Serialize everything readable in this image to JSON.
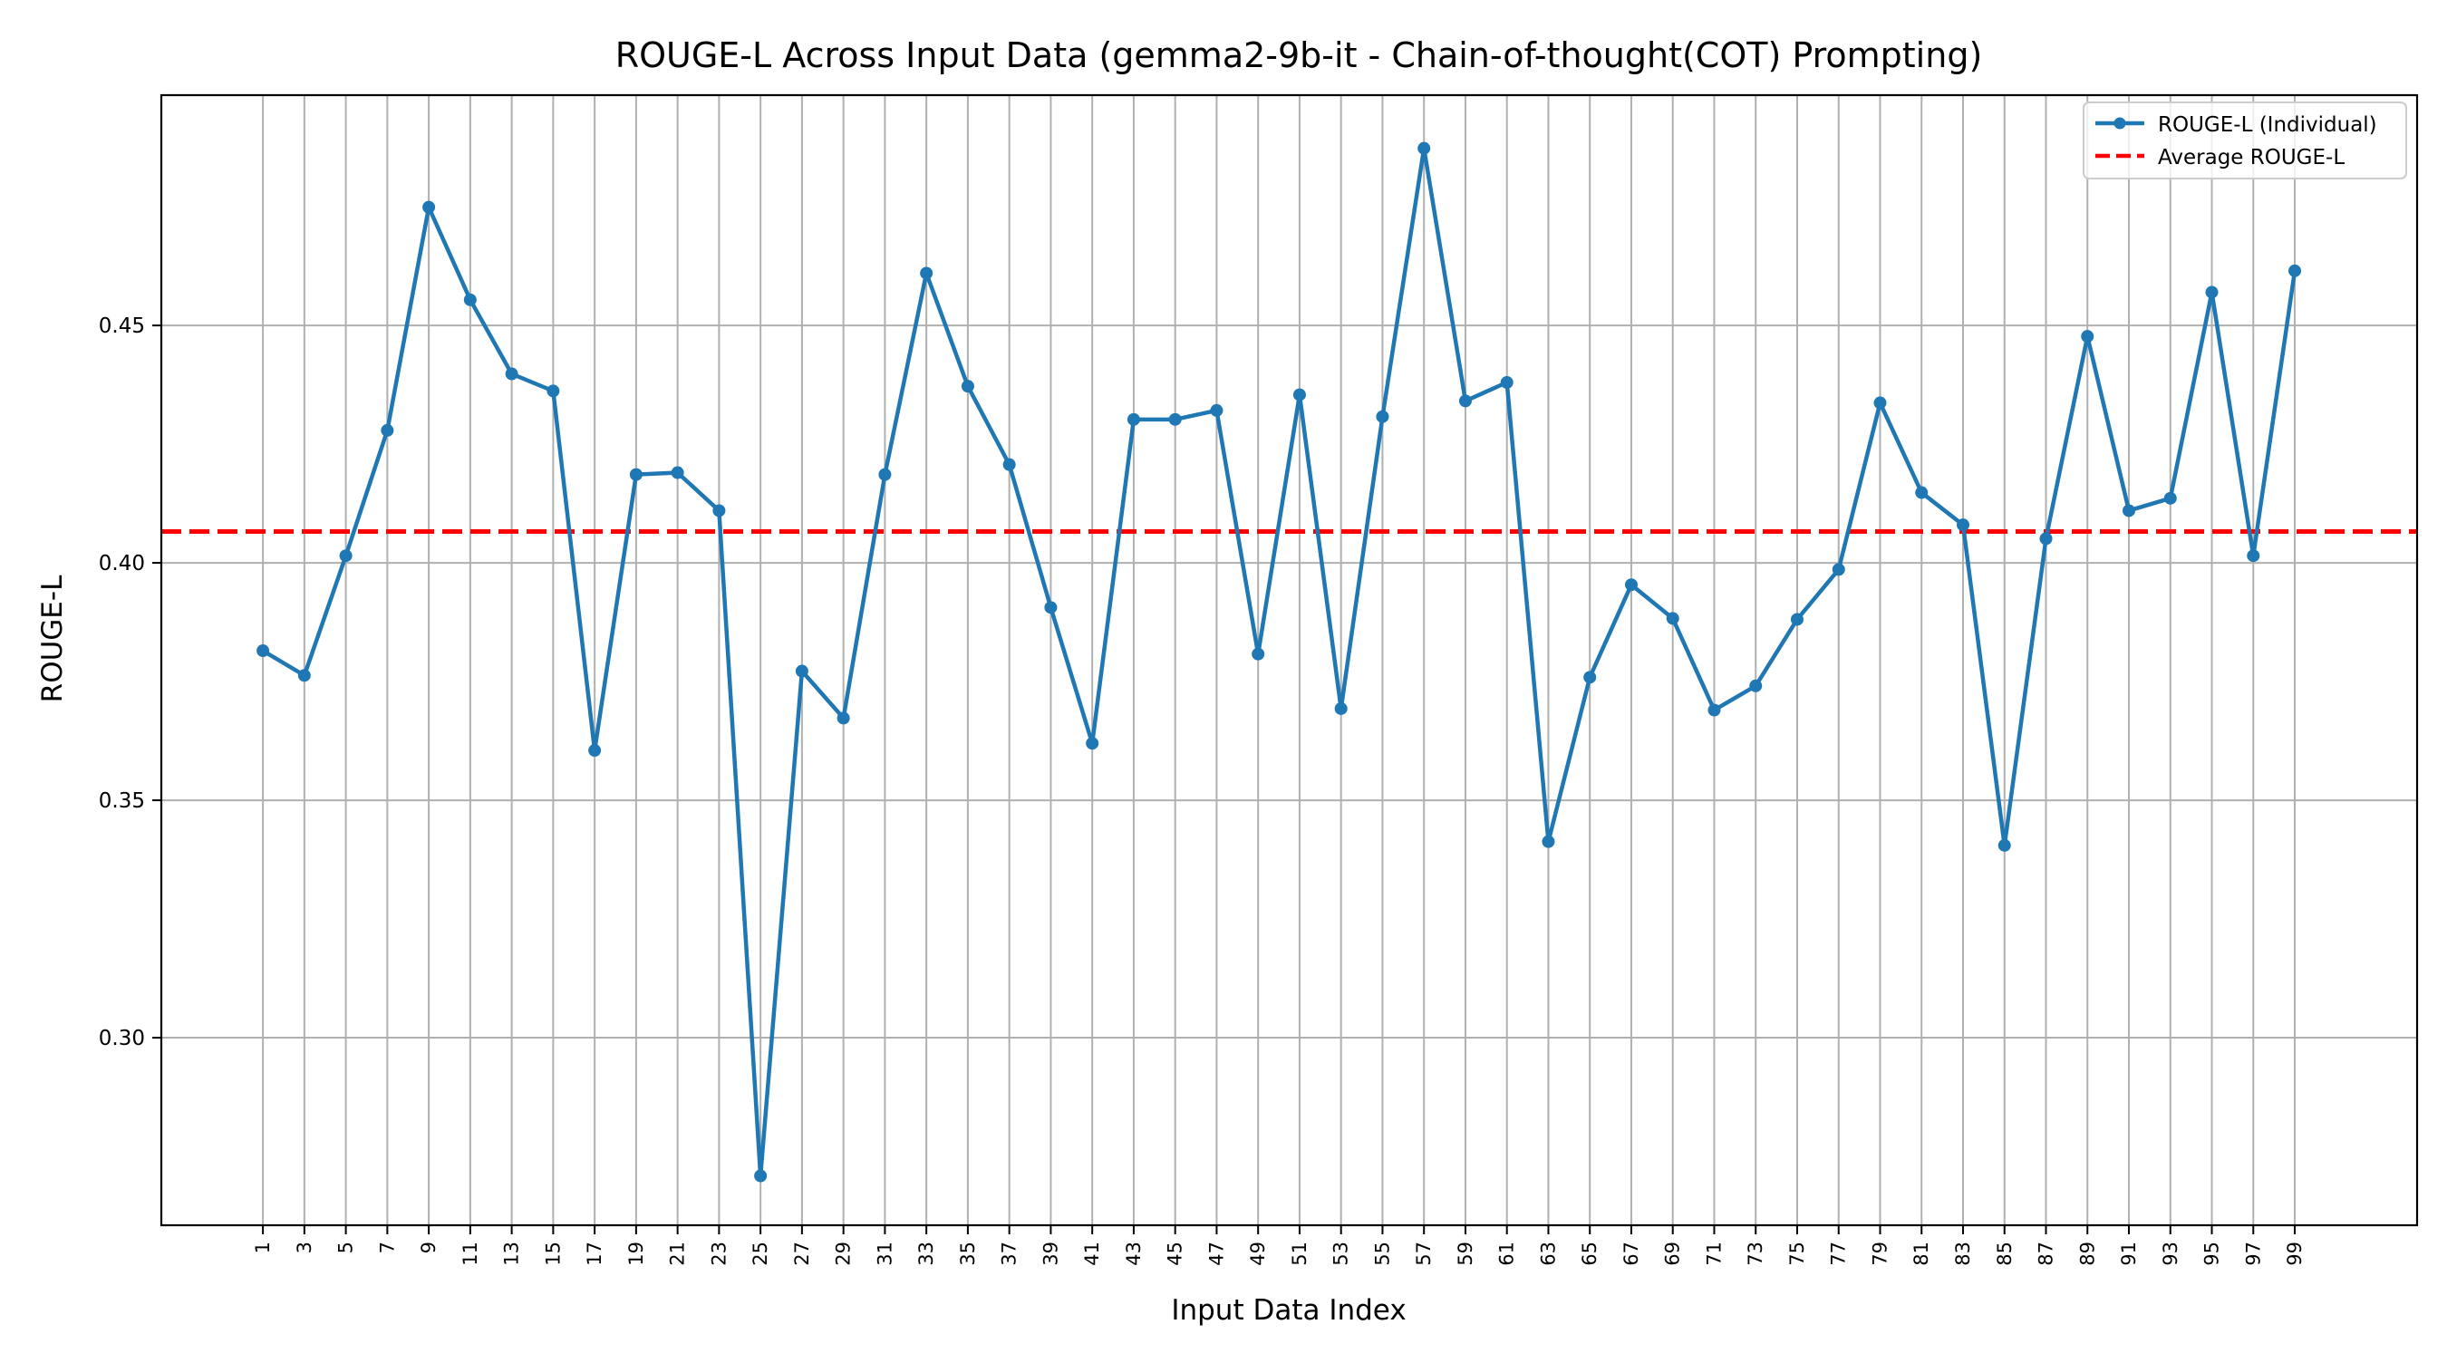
{
  "chart_data": {
    "type": "line",
    "title": "ROUGE-L Across Input Data (gemma2-9b-it - Chain-of-thought(COT) Prompting)",
    "xlabel": "Input Data Index",
    "ylabel": "ROUGE-L",
    "xlim": [
      -3.9,
      104.9
    ],
    "ylim": [
      0.2605,
      0.4985
    ],
    "grid": true,
    "legend_position": "top-right",
    "x_ticks": [
      1,
      3,
      5,
      7,
      9,
      11,
      13,
      15,
      17,
      19,
      21,
      23,
      25,
      27,
      29,
      31,
      33,
      35,
      37,
      39,
      41,
      43,
      45,
      47,
      49,
      51,
      53,
      55,
      57,
      59,
      61,
      63,
      65,
      67,
      69,
      71,
      73,
      75,
      77,
      79,
      81,
      83,
      85,
      87,
      89,
      91,
      93,
      95,
      97,
      99
    ],
    "y_ticks": [
      0.3,
      0.35,
      0.4,
      0.45
    ],
    "y_tick_labels": [
      "0.30",
      "0.35",
      "0.40",
      "0.45"
    ],
    "series": [
      {
        "name": "ROUGE-L (Individual)",
        "color": "#1f77b4",
        "style": "solid-line-with-markers",
        "x": [
          1,
          3,
          5,
          7,
          9,
          11,
          13,
          15,
          17,
          19,
          21,
          23,
          25,
          27,
          29,
          31,
          33,
          35,
          37,
          39,
          41,
          43,
          45,
          47,
          49,
          51,
          53,
          55,
          57,
          59,
          61,
          63,
          65,
          67,
          69,
          71,
          73,
          75,
          77,
          79,
          81,
          83,
          85,
          87,
          89,
          91,
          93,
          95,
          97,
          99
        ],
        "values": [
          0.3815,
          0.3763,
          0.4015,
          0.4279,
          0.4749,
          0.4554,
          0.4398,
          0.4362,
          0.3605,
          0.4186,
          0.419,
          0.411,
          0.2709,
          0.3772,
          0.3673,
          0.4186,
          0.461,
          0.4372,
          0.4207,
          0.3906,
          0.362,
          0.4302,
          0.4302,
          0.4321,
          0.3808,
          0.4354,
          0.3693,
          0.4308,
          0.4873,
          0.4341,
          0.438,
          0.3413,
          0.3759,
          0.3954,
          0.3883,
          0.369,
          0.3741,
          0.3881,
          0.3986,
          0.4337,
          0.4148,
          0.408,
          0.3405,
          0.4051,
          0.4477,
          0.411,
          0.4136,
          0.457,
          0.4015,
          0.4615
        ]
      },
      {
        "name": "Average ROUGE-L",
        "color": "#ff0000",
        "style": "dashed",
        "value": 0.4066
      }
    ]
  }
}
